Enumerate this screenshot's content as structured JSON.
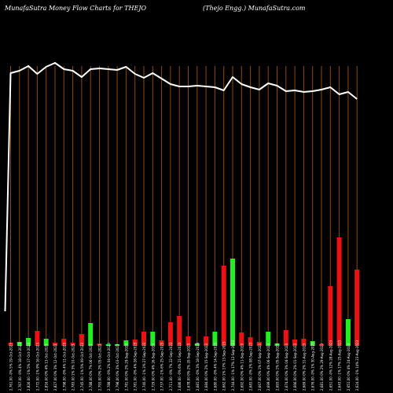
{
  "header": {
    "left": "MunafaSutra  Money Flow  Charts for THEJO",
    "right": "(Thejo  Engg.) MunafaSutra.com"
  },
  "chart_data": {
    "type": "bar",
    "title": "Money Flow Charts for THEJO",
    "colors": {
      "background": "#000000",
      "grid": "#8a4a10",
      "line": "#ffffff",
      "up": "#22ee22",
      "down": "#ee1111"
    },
    "grid": true,
    "categories": [
      "19-Oct-2023",
      "18-Oct-2023",
      "17-Oct-2023",
      "16-Oct-2023",
      "13-Oct-2023",
      "12-Oct-2023",
      "11-Oct-2023",
      "10-Oct-2023",
      "09-Oct-2023",
      "06-Oct-2023",
      "05-Oct-2023",
      "04-Oct-2023",
      "03-Oct-2023",
      "29-Sep-2023",
      "28-Sep-2023",
      "27-Sep-2023",
      "26-Sep-2023",
      "25-Sep-2023",
      "22-Sep-2023",
      "21-Sep-2023",
      "20-Sep-2023",
      "18-Sep-2023",
      "15-Sep-2023",
      "14-Sep-2023",
      "13-Sep-2023",
      "12-Sep-2023",
      "11-Sep-2023",
      "08-Sep-2023",
      "07-Sep-2023",
      "06-Sep-2023",
      "05-Sep-2023",
      "04-Sep-2023",
      "01-Sep-2023",
      "31-Aug-2023",
      "30-Aug-2023",
      "29-Aug-2023",
      "28-Aug-2023",
      "25-Aug-2023",
      "24-Aug-2023",
      "23-Aug-2023"
    ],
    "x_tick_labels": [
      "2,761.00 -0% 5%",
      "2,767.00 -0% 4%",
      "2,826.00 -1% 5%",
      "2,772.00 -1% 9%",
      "2,816.00 0% 4%",
      "2,827.00 0% 3%",
      "2,798.00 -0% 4%",
      "2,783.00 1% 3%",
      "2,745.00 -1% 5%",
      "2,788.00 0% 7%",
      "2,793.00 0% 2%",
      "2,788.00 -0% 2%",
      "2,798.00 0% 3%",
      "2,781.00 0% 2%",
      "2,781.00 -0% 4%",
      "2,740.00 -1% 3%",
      "2,729.00 0% 4%",
      "2,737.00 -1% 6%",
      "2,711.00 -0% 7%",
      "2,686.00 -0% 6%",
      "2,678.00 0% 2%",
      "2,681.00 -0% 3%",
      "2,684.00 0% 2%",
      "2,680.00 -0% 4%",
      "2,662.00 1% 17%",
      "2,744.00 -1% 17%",
      "2,692.00 0% 4%",
      "2,683.00 -0% 2%",
      "2,667.00 0% 1%",
      "2,699.00 0% 4%",
      "2,693.00 0% 1%",
      "2,674.00 0% 3%",
      "2,666.00 0% 2%",
      "2,669.00 0% 2%",
      "2,676.00 -0% 1%",
      "2,681.00 0% 2%",
      "2,651.00 -0% 12%",
      "2,643.00 -1% 17%",
      "2,651.00 0% 4%",
      "2,624.00 -1% 14%"
    ],
    "bars": [
      {
        "value": 4,
        "direction": "down"
      },
      {
        "value": 5,
        "direction": "up"
      },
      {
        "value": 10,
        "direction": "up"
      },
      {
        "value": 19,
        "direction": "down"
      },
      {
        "value": 9,
        "direction": "up"
      },
      {
        "value": 4,
        "direction": "down"
      },
      {
        "value": 9,
        "direction": "down"
      },
      {
        "value": 4,
        "direction": "down"
      },
      {
        "value": 15,
        "direction": "down"
      },
      {
        "value": 29,
        "direction": "up"
      },
      {
        "value": 3,
        "direction": "down"
      },
      {
        "value": 2,
        "direction": "up"
      },
      {
        "value": 2,
        "direction": "up"
      },
      {
        "value": 7,
        "direction": "up"
      },
      {
        "value": 8,
        "direction": "down"
      },
      {
        "value": 18,
        "direction": "down"
      },
      {
        "value": 18,
        "direction": "up"
      },
      {
        "value": 7,
        "direction": "down"
      },
      {
        "value": 30,
        "direction": "down"
      },
      {
        "value": 38,
        "direction": "down"
      },
      {
        "value": 12,
        "direction": "down"
      },
      {
        "value": 3,
        "direction": "up"
      },
      {
        "value": 12,
        "direction": "down"
      },
      {
        "value": 18,
        "direction": "up"
      },
      {
        "value": 102,
        "direction": "down"
      },
      {
        "value": 111,
        "direction": "up"
      },
      {
        "value": 17,
        "direction": "down"
      },
      {
        "value": 11,
        "direction": "down"
      },
      {
        "value": 5,
        "direction": "down"
      },
      {
        "value": 18,
        "direction": "up"
      },
      {
        "value": 3,
        "direction": "up"
      },
      {
        "value": 20,
        "direction": "down"
      },
      {
        "value": 8,
        "direction": "down"
      },
      {
        "value": 9,
        "direction": "down"
      },
      {
        "value": 6,
        "direction": "up"
      },
      {
        "value": 2,
        "direction": "down"
      },
      {
        "value": 76,
        "direction": "down"
      },
      {
        "value": 138,
        "direction": "down"
      },
      {
        "value": 34,
        "direction": "up"
      },
      {
        "value": 97,
        "direction": "down"
      }
    ],
    "price_line": {
      "start_value": 44,
      "values": [
        347,
        350,
        356,
        346,
        355,
        360,
        352,
        350,
        342,
        352,
        353,
        352,
        351,
        355,
        346,
        341,
        347,
        340,
        333,
        330,
        330,
        331,
        330,
        329,
        325,
        342,
        333,
        329,
        326,
        334,
        331,
        324,
        325,
        323,
        324,
        326,
        329,
        320,
        323,
        314
      ]
    },
    "ylim": [
      0,
      440
    ]
  }
}
